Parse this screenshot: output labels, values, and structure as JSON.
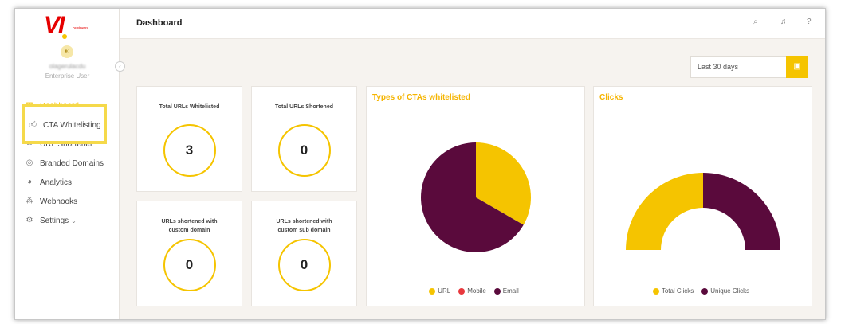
{
  "brand": {
    "logo_text": "VI",
    "logo_sub": "business",
    "primary": "#e60000",
    "accent": "#f5c400",
    "plum": "#5a0a3c"
  },
  "user": {
    "initial": "€",
    "name": "olagerulacdu",
    "role": "Enterprise User"
  },
  "sidebar": {
    "items": [
      {
        "label": "Dashboard",
        "icon": "grid-icon"
      },
      {
        "label": "CTA Whitelisting",
        "icon": "thumbs-up-icon"
      },
      {
        "label": "URL Shortener",
        "icon": "link-icon"
      },
      {
        "label": "Branded Domains",
        "icon": "globe-icon"
      },
      {
        "label": "Analytics",
        "icon": "pie-icon"
      },
      {
        "label": "Webhooks",
        "icon": "webhook-icon"
      },
      {
        "label": "Settings",
        "icon": "gear-icon"
      }
    ]
  },
  "header": {
    "title": "Dashboard"
  },
  "filter": {
    "date_range": "Last 30 days"
  },
  "stats": [
    {
      "label": "Total URLs Whitelisted",
      "value": "3"
    },
    {
      "label": "Total URLs Shortened",
      "value": "0"
    },
    {
      "label": "URLs shortened with custom domain",
      "value": "0"
    },
    {
      "label": "URLs shortened with custom sub domain",
      "value": "0"
    }
  ],
  "chart_data": [
    {
      "type": "pie",
      "title": "Types of CTAs whitelisted",
      "series": [
        {
          "name": "URL",
          "value": 1,
          "color": "#f5c400"
        },
        {
          "name": "Mobile",
          "value": 0,
          "color": "#e8383d"
        },
        {
          "name": "Email",
          "value": 2,
          "color": "#5a0a3c"
        }
      ]
    },
    {
      "type": "pie",
      "title": "Clicks",
      "series": [
        {
          "name": "Total Clicks",
          "value": 1,
          "color": "#f5c400"
        },
        {
          "name": "Unique Clicks",
          "value": 1,
          "color": "#5a0a3c"
        }
      ]
    }
  ]
}
